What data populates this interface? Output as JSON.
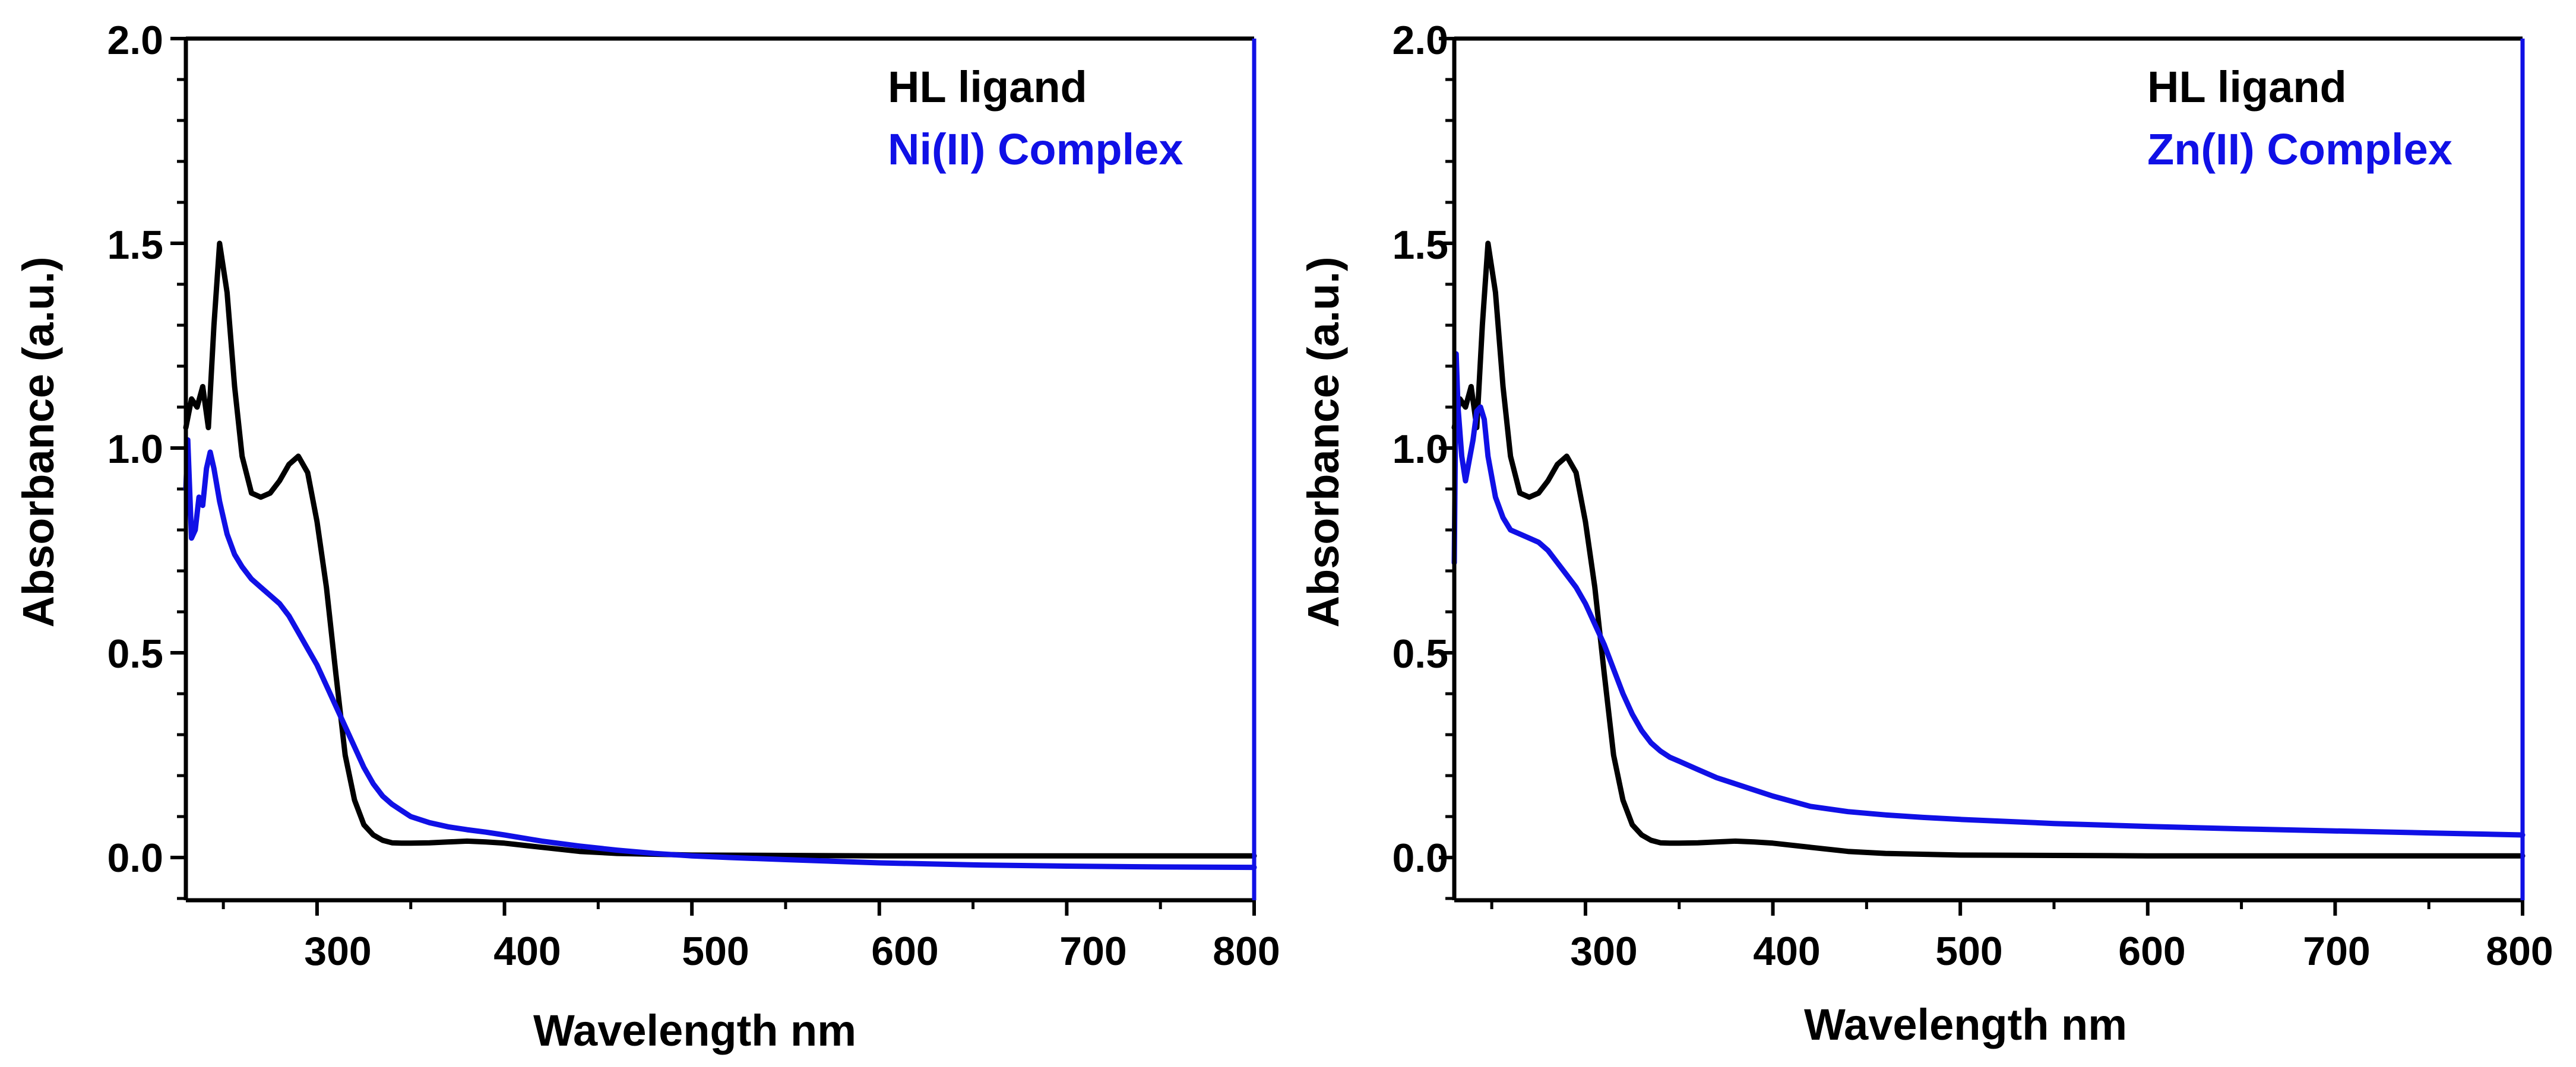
{
  "colors": {
    "ligand": "#000000",
    "complex": "#1010e6",
    "axis": "#000000",
    "right_spine": "#1010e6"
  },
  "chart_data": [
    {
      "type": "line",
      "panel": "left",
      "xlabel": "Wavelength nm",
      "ylabel": "Absorbance (a.u.)",
      "xlim": [
        230,
        800
      ],
      "ylim": [
        -0.1,
        2.0
      ],
      "xticks": [
        300,
        400,
        500,
        600,
        700,
        800
      ],
      "xtick_labels": [
        "300",
        "400",
        "500",
        "600",
        "700",
        "800"
      ],
      "yticks": [
        0.0,
        0.5,
        1.0,
        1.5,
        2.0
      ],
      "ytick_labels": [
        "0.0",
        "0.5",
        "1.0",
        "1.5",
        "2.0"
      ],
      "grid": false,
      "legend_position": "top-right",
      "series": [
        {
          "name": "HL ligand",
          "color": "#000000",
          "x": [
            230,
            233,
            236,
            239,
            242,
            245,
            248,
            252,
            256,
            260,
            265,
            270,
            275,
            280,
            285,
            290,
            295,
            300,
            305,
            310,
            315,
            320,
            325,
            330,
            335,
            340,
            345,
            350,
            360,
            370,
            380,
            390,
            400,
            420,
            440,
            460,
            480,
            500,
            550,
            600,
            650,
            700,
            750,
            800
          ],
          "y": [
            1.05,
            1.12,
            1.1,
            1.15,
            1.05,
            1.3,
            1.5,
            1.38,
            1.15,
            0.98,
            0.89,
            0.88,
            0.89,
            0.92,
            0.96,
            0.98,
            0.94,
            0.82,
            0.66,
            0.45,
            0.25,
            0.14,
            0.08,
            0.055,
            0.042,
            0.036,
            0.035,
            0.035,
            0.036,
            0.038,
            0.04,
            0.038,
            0.035,
            0.025,
            0.015,
            0.01,
            0.008,
            0.006,
            0.005,
            0.004,
            0.004,
            0.004,
            0.004,
            0.004
          ]
        },
        {
          "name": "Ni(II) Complex",
          "color": "#1010e6",
          "x": [
            230,
            231,
            233,
            235,
            237,
            239,
            241,
            243,
            245,
            248,
            252,
            256,
            260,
            265,
            270,
            275,
            280,
            285,
            290,
            295,
            300,
            305,
            310,
            315,
            320,
            325,
            330,
            335,
            340,
            345,
            350,
            360,
            370,
            380,
            390,
            400,
            420,
            440,
            460,
            480,
            500,
            520,
            550,
            600,
            650,
            700,
            750,
            800
          ],
          "y": [
            0.9,
            1.02,
            0.78,
            0.8,
            0.88,
            0.86,
            0.95,
            0.99,
            0.95,
            0.87,
            0.79,
            0.74,
            0.71,
            0.68,
            0.66,
            0.64,
            0.62,
            0.59,
            0.55,
            0.51,
            0.47,
            0.42,
            0.37,
            0.32,
            0.27,
            0.22,
            0.18,
            0.15,
            0.13,
            0.115,
            0.1,
            0.085,
            0.075,
            0.068,
            0.062,
            0.055,
            0.04,
            0.028,
            0.018,
            0.01,
            0.004,
            0.0,
            -0.005,
            -0.013,
            -0.018,
            -0.021,
            -0.023,
            -0.024
          ]
        }
      ]
    },
    {
      "type": "line",
      "panel": "right",
      "xlabel": "Wavelength nm",
      "ylabel": "Absorbance (a.u.)",
      "xlim": [
        230,
        800
      ],
      "ylim": [
        -0.1,
        2.0
      ],
      "xticks": [
        300,
        400,
        500,
        600,
        700,
        800
      ],
      "xtick_labels": [
        "300",
        "400",
        "500",
        "600",
        "700",
        "800"
      ],
      "yticks": [
        0.0,
        0.5,
        1.0,
        1.5,
        2.0
      ],
      "ytick_labels": [
        "0.0",
        "0.5",
        "1.0",
        "1.5",
        "2.0"
      ],
      "grid": false,
      "legend_position": "top-right",
      "series": [
        {
          "name": "HL ligand",
          "color": "#000000",
          "x": [
            230,
            233,
            236,
            239,
            242,
            245,
            248,
            252,
            256,
            260,
            265,
            270,
            275,
            280,
            285,
            290,
            295,
            300,
            305,
            310,
            315,
            320,
            325,
            330,
            335,
            340,
            345,
            350,
            360,
            370,
            380,
            390,
            400,
            420,
            440,
            460,
            480,
            500,
            550,
            600,
            650,
            700,
            750,
            800
          ],
          "y": [
            1.05,
            1.12,
            1.1,
            1.15,
            1.05,
            1.3,
            1.5,
            1.38,
            1.15,
            0.98,
            0.89,
            0.88,
            0.89,
            0.92,
            0.96,
            0.98,
            0.94,
            0.82,
            0.66,
            0.45,
            0.25,
            0.14,
            0.08,
            0.055,
            0.042,
            0.036,
            0.035,
            0.035,
            0.036,
            0.038,
            0.04,
            0.038,
            0.035,
            0.025,
            0.015,
            0.01,
            0.008,
            0.006,
            0.005,
            0.004,
            0.004,
            0.004,
            0.004,
            0.004
          ]
        },
        {
          "name": "Zn(II) Complex",
          "color": "#1010e6",
          "x": [
            230,
            231,
            232,
            234,
            236,
            238,
            240,
            242,
            244,
            246,
            248,
            252,
            256,
            260,
            265,
            270,
            275,
            280,
            285,
            290,
            295,
            300,
            305,
            310,
            315,
            320,
            325,
            330,
            335,
            340,
            345,
            350,
            360,
            370,
            380,
            400,
            420,
            440,
            460,
            480,
            500,
            550,
            600,
            650,
            700,
            750,
            800
          ],
          "y": [
            0.72,
            1.23,
            1.1,
            0.98,
            0.92,
            0.97,
            1.02,
            1.09,
            1.1,
            1.07,
            0.98,
            0.88,
            0.83,
            0.8,
            0.79,
            0.78,
            0.77,
            0.75,
            0.72,
            0.69,
            0.66,
            0.62,
            0.57,
            0.52,
            0.46,
            0.4,
            0.35,
            0.31,
            0.28,
            0.26,
            0.245,
            0.235,
            0.215,
            0.195,
            0.18,
            0.15,
            0.125,
            0.112,
            0.104,
            0.098,
            0.093,
            0.083,
            0.076,
            0.07,
            0.065,
            0.06,
            0.055
          ]
        }
      ]
    }
  ]
}
